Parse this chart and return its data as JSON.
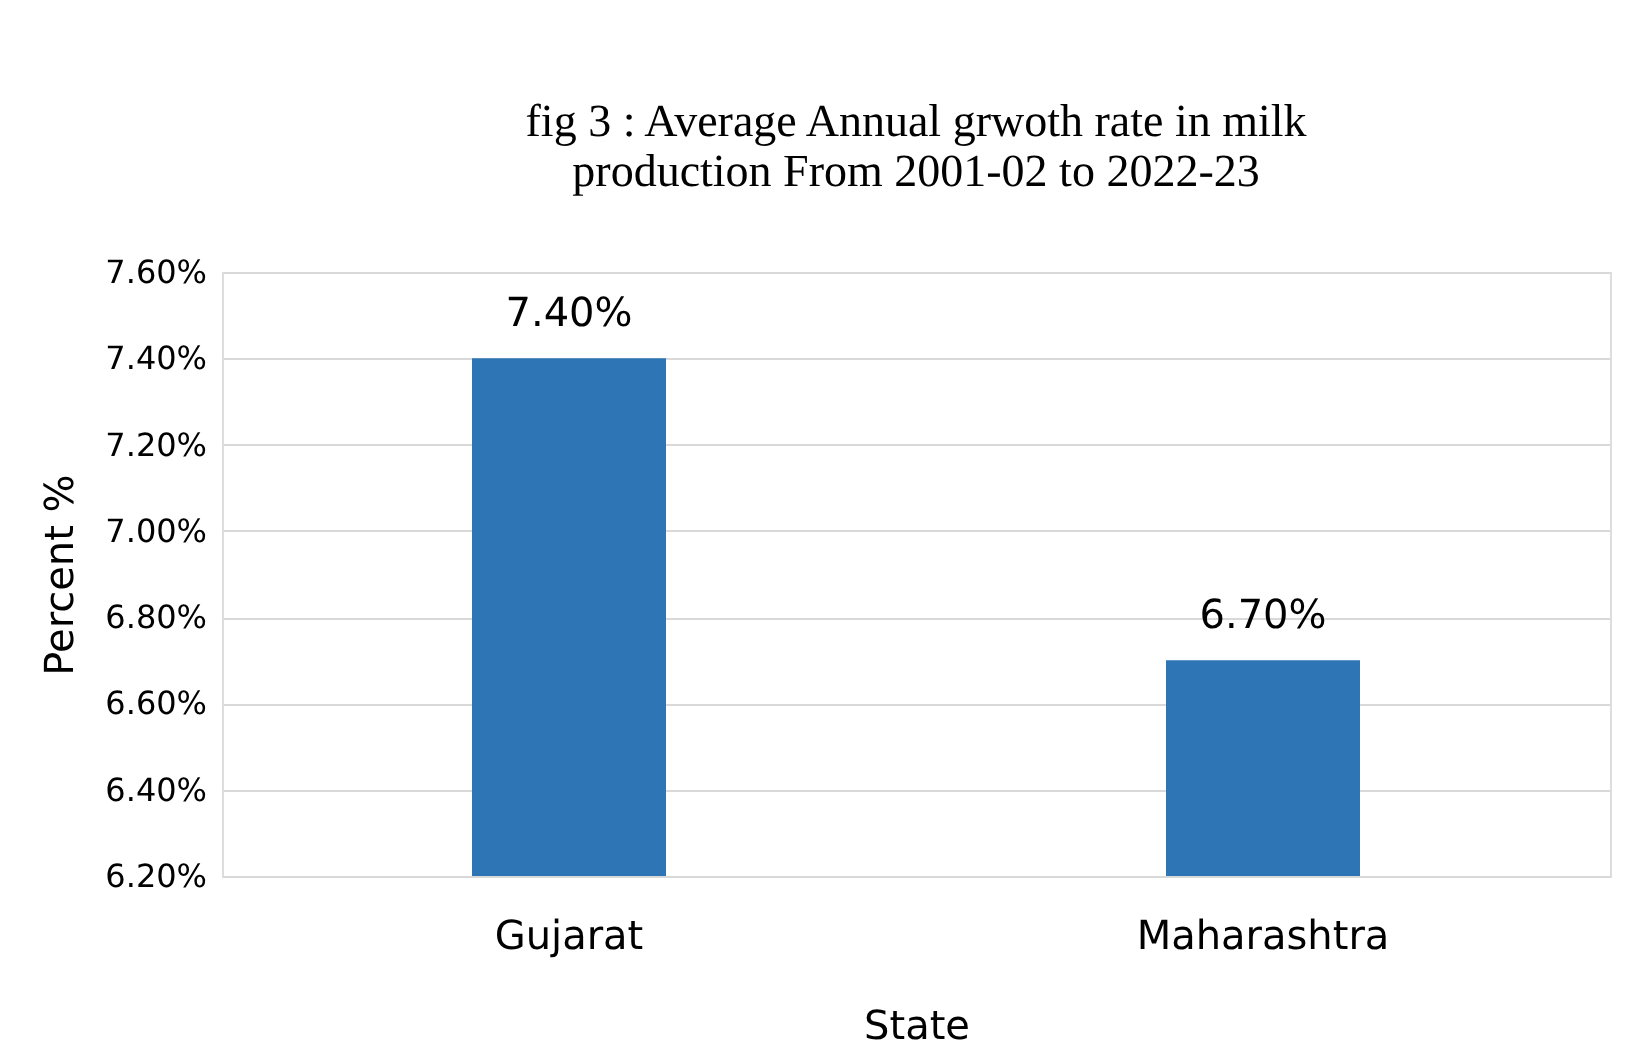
{
  "chart_data": {
    "type": "bar",
    "title": [
      "fig 3 : Average Annual grwoth rate in milk",
      "production From 2001-02 to 2022-23"
    ],
    "xlabel": "State",
    "ylabel": "Percent %",
    "categories": [
      "Gujarat",
      "Maharashtra"
    ],
    "values": [
      7.4,
      6.7
    ],
    "color": "#2e75b6",
    "value_labels": [
      "7.40%",
      "6.70%"
    ],
    "ylim": [
      6.2,
      7.6
    ],
    "yticks": [
      {
        "value": 6.2,
        "label": "6.20%"
      },
      {
        "value": 6.4,
        "label": "6.40%"
      },
      {
        "value": 6.6,
        "label": "6.60%"
      },
      {
        "value": 6.8,
        "label": "6.80%"
      },
      {
        "value": 7.0,
        "label": "7.00%"
      },
      {
        "value": 7.2,
        "label": "7.20%"
      },
      {
        "value": 7.4,
        "label": "7.40%"
      },
      {
        "value": 7.6,
        "label": "7.60%"
      }
    ],
    "grid": "y"
  }
}
